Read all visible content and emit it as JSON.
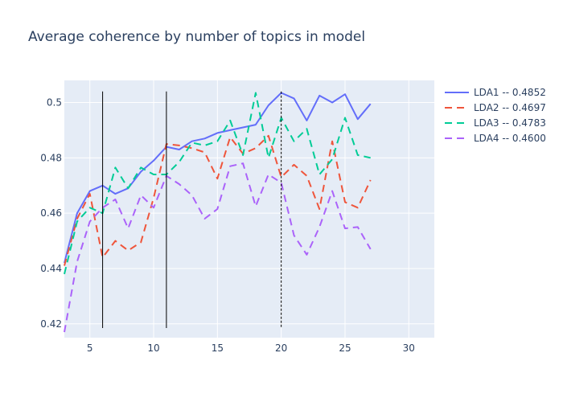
{
  "chart_data": {
    "type": "line",
    "title": "Average coherence by number of topics in model",
    "xlabel": "",
    "ylabel": "",
    "xlim": [
      3,
      32
    ],
    "ylim": [
      0.415,
      0.508
    ],
    "xticks": [
      5,
      10,
      15,
      20,
      25,
      30
    ],
    "yticks": [
      0.42,
      0.44,
      0.46,
      0.48,
      0.5
    ],
    "grid": true,
    "legend": "right",
    "plot_bg": "#e5ecf6",
    "x": [
      3,
      4,
      5,
      6,
      7,
      8,
      9,
      10,
      11,
      12,
      13,
      14,
      15,
      16,
      17,
      18,
      19,
      20,
      21,
      22,
      23,
      24,
      25,
      26,
      27
    ],
    "series": [
      {
        "name": "LDA1 -- 0.4852",
        "color": "#636efa",
        "dash": "solid",
        "values": [
          0.442,
          0.46,
          0.468,
          0.47,
          0.467,
          0.469,
          0.475,
          0.479,
          0.484,
          0.483,
          0.486,
          0.487,
          0.489,
          0.49,
          0.491,
          0.492,
          0.499,
          0.5035,
          0.5015,
          0.4935,
          0.5025,
          0.5,
          0.503,
          0.494,
          0.4995
        ]
      },
      {
        "name": "LDA2 -- 0.4697",
        "color": "#ef553b",
        "dash": "dashed",
        "values": [
          0.441,
          0.458,
          0.467,
          0.444,
          0.45,
          0.4465,
          0.4495,
          0.4655,
          0.485,
          0.4845,
          0.4835,
          0.482,
          0.4725,
          0.4875,
          0.4815,
          0.4835,
          0.488,
          0.473,
          0.4775,
          0.4735,
          0.4615,
          0.486,
          0.464,
          0.462,
          0.472
        ]
      },
      {
        "name": "LDA3 -- 0.4783",
        "color": "#00cc96",
        "dash": "dashed",
        "values": [
          0.438,
          0.457,
          0.462,
          0.46,
          0.4765,
          0.469,
          0.4765,
          0.474,
          0.474,
          0.4785,
          0.4855,
          0.4845,
          0.486,
          0.4935,
          0.481,
          0.5035,
          0.48,
          0.4945,
          0.486,
          0.4905,
          0.474,
          0.4795,
          0.4945,
          0.481,
          0.48
        ]
      },
      {
        "name": "LDA4 -- 0.4600",
        "color": "#ab63fa",
        "dash": "dashed",
        "values": [
          0.417,
          0.4425,
          0.457,
          0.462,
          0.465,
          0.4545,
          0.4665,
          0.462,
          0.4735,
          0.4705,
          0.4665,
          0.458,
          0.4615,
          0.477,
          0.478,
          0.4625,
          0.474,
          0.471,
          0.452,
          0.445,
          0.455,
          0.468,
          0.4545,
          0.455,
          0.447
        ]
      }
    ],
    "vlines": [
      {
        "x": 6,
        "y0": 0.4185,
        "y1": 0.504,
        "style": "solid"
      },
      {
        "x": 11,
        "y0": 0.4185,
        "y1": 0.504,
        "style": "solid"
      },
      {
        "x": 20,
        "y0": 0.4185,
        "y1": 0.504,
        "style": "dotted"
      }
    ]
  }
}
